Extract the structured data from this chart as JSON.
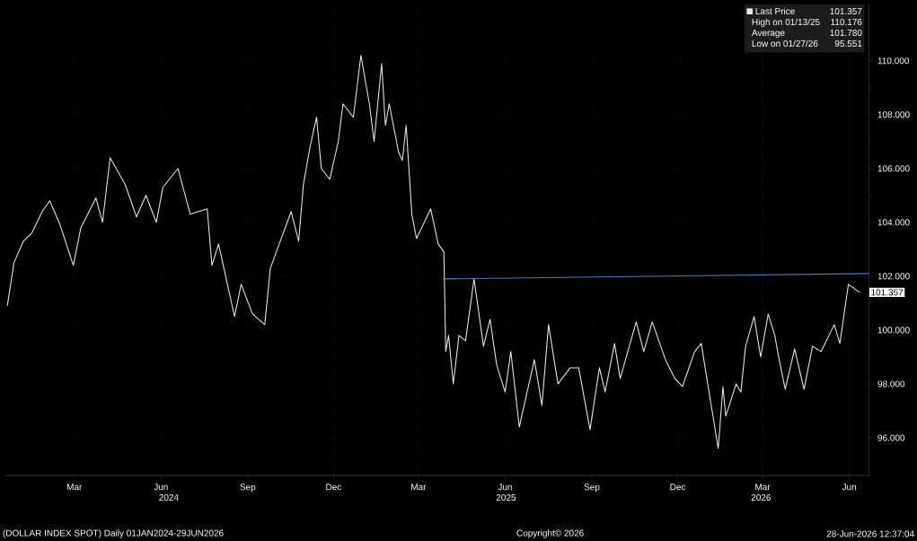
{
  "chart_data": {
    "type": "line",
    "xlim": [
      "2024-01-01",
      "2026-07-06"
    ],
    "ylim": [
      94.6,
      112.1
    ],
    "xticks": [
      {
        "value": "2024-03-15",
        "label": "Mar"
      },
      {
        "value": "2024-06-15",
        "label": "Jun"
      },
      {
        "value": "2024-09-15",
        "label": "Sep"
      },
      {
        "value": "2024-12-15",
        "label": "Dec"
      },
      {
        "value": "2025-03-15",
        "label": "Mar"
      },
      {
        "value": "2025-06-15",
        "label": "Jun"
      },
      {
        "value": "2025-09-15",
        "label": "Sep"
      },
      {
        "value": "2025-12-15",
        "label": "Dec"
      },
      {
        "value": "2026-03-15",
        "label": "Mar"
      },
      {
        "value": "2026-06-15",
        "label": "Jun"
      }
    ],
    "yticks": [
      {
        "value": 96,
        "label": "96.000"
      },
      {
        "value": 98,
        "label": "98.000"
      },
      {
        "value": 100,
        "label": "100.000"
      },
      {
        "value": 102,
        "label": "102.000"
      },
      {
        "value": 104,
        "label": "104.000"
      },
      {
        "value": 106,
        "label": "106.000"
      },
      {
        "value": 108,
        "label": "108.000"
      },
      {
        "value": 110,
        "label": "110.000"
      }
    ],
    "grid": true,
    "legend": "top right",
    "marker": "none",
    "line_style": "solid",
    "series": [
      {
        "name": "Last Price",
        "color": "#e6e6e6",
        "x": [
          "2024-01-04",
          "2024-01-11",
          "2024-01-21",
          "2024-01-30",
          "2024-02-10",
          "2024-02-18",
          "2024-02-29",
          "2024-03-14",
          "2024-03-22",
          "2024-04-07",
          "2024-04-14",
          "2024-04-22",
          "2024-05-08",
          "2024-05-20",
          "2024-05-30",
          "2024-06-10",
          "2024-06-17",
          "2024-07-03",
          "2024-07-16",
          "2024-08-03",
          "2024-08-08",
          "2024-08-15",
          "2024-09-01",
          "2024-09-08",
          "2024-09-20",
          "2024-10-03",
          "2024-10-09",
          "2024-10-31",
          "2024-11-08",
          "2024-11-13",
          "2024-11-20",
          "2024-11-27",
          "2024-12-02",
          "2024-12-11",
          "2024-12-20",
          "2024-12-25",
          "2025-01-05",
          "2025-01-13",
          "2025-01-22",
          "2025-01-27",
          "2025-02-04",
          "2025-02-08",
          "2025-02-12",
          "2025-02-22",
          "2025-02-26",
          "2025-03-02",
          "2025-03-08",
          "2025-03-13",
          "2025-03-28",
          "2025-04-05",
          "2025-04-11",
          "2025-04-13",
          "2025-04-16",
          "2025-04-21",
          "2025-04-27",
          "2025-05-04",
          "2025-05-13",
          "2025-05-23",
          "2025-05-30",
          "2025-06-06",
          "2025-06-15",
          "2025-06-21",
          "2025-06-30",
          "2025-07-16",
          "2025-07-24",
          "2025-07-31",
          "2025-08-10",
          "2025-08-23",
          "2025-09-01",
          "2025-09-13",
          "2025-09-23",
          "2025-09-29",
          "2025-10-09",
          "2025-10-15",
          "2025-11-01",
          "2025-11-09",
          "2025-11-18",
          "2025-12-02",
          "2025-12-12",
          "2025-12-20",
          "2026-01-02",
          "2026-01-09",
          "2026-01-14",
          "2026-01-27",
          "2026-02-01",
          "2026-02-04",
          "2026-02-15",
          "2026-02-20",
          "2026-02-25",
          "2026-03-06",
          "2026-03-13",
          "2026-03-21",
          "2026-03-28",
          "2026-03-31",
          "2026-04-08",
          "2026-04-18",
          "2026-04-28",
          "2026-05-07",
          "2026-05-16",
          "2026-05-30",
          "2026-06-05",
          "2026-06-14",
          "2026-06-26"
        ],
        "values": [
          100.9,
          102.5,
          103.3,
          103.6,
          104.4,
          104.8,
          103.9,
          102.4,
          103.8,
          104.9,
          104.0,
          106.4,
          105.4,
          104.2,
          105.0,
          104.0,
          105.3,
          106.0,
          104.3,
          104.5,
          102.4,
          103.2,
          100.5,
          101.7,
          100.6,
          100.2,
          102.3,
          104.4,
          103.3,
          105.4,
          106.8,
          107.9,
          106.0,
          105.6,
          107.0,
          108.4,
          107.9,
          110.2,
          108.4,
          107.0,
          109.9,
          107.6,
          108.4,
          106.6,
          106.3,
          107.6,
          104.3,
          103.4,
          104.5,
          103.2,
          102.9,
          99.2,
          99.8,
          98.0,
          99.8,
          99.6,
          101.9,
          99.4,
          100.4,
          98.7,
          97.7,
          99.2,
          96.4,
          98.9,
          97.2,
          100.2,
          98.0,
          98.6,
          98.6,
          96.3,
          98.6,
          97.7,
          99.5,
          98.2,
          100.3,
          99.2,
          100.3,
          98.9,
          98.2,
          97.9,
          99.2,
          99.5,
          98.4,
          95.6,
          97.9,
          96.8,
          98.0,
          97.7,
          99.4,
          100.5,
          99.0,
          100.6,
          99.8,
          99.2,
          97.8,
          99.3,
          97.8,
          99.4,
          99.2,
          100.2,
          99.5,
          101.7,
          101.4
        ]
      },
      {
        "color": "#4a7ab8",
        "x": [
          "2025-04-10",
          "2026-07-06"
        ],
        "values": [
          101.9,
          102.1
        ]
      }
    ],
    "annotations": [
      "101.357",
      "High on 01/13/25",
      "110.176",
      "Average",
      "101.780",
      "Low on 01/27/26",
      "95.551",
      "101.357",
      "2024",
      "2025",
      "2026",
      "(DOLLAR INDEX SPOT) Daily 01JAN2024-29JUN2026",
      "Copyright© 2026",
      "28-Jun-2026 12:37:04"
    ]
  }
}
